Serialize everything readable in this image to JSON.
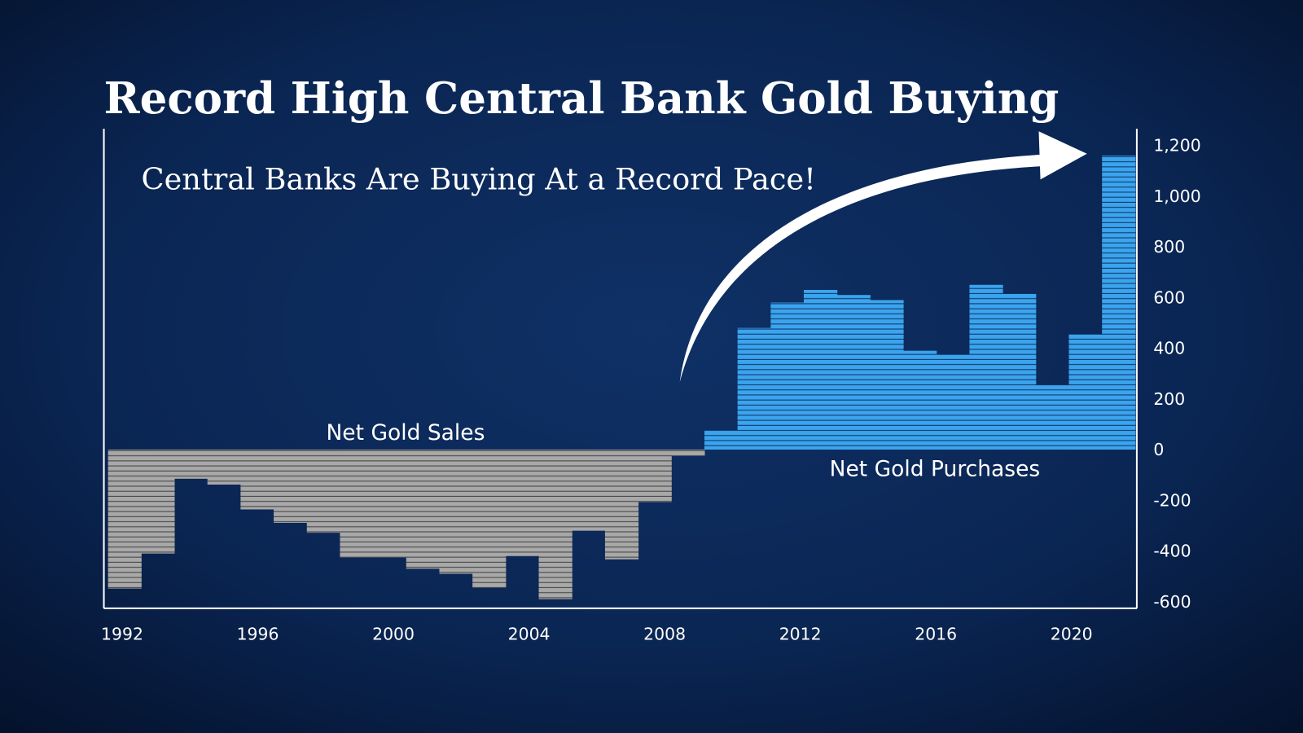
{
  "chart_data": {
    "type": "bar",
    "title": "Record High Central Bank Gold Buying",
    "subtitle": "Central Banks Are Buying At a Record Pace!",
    "annotations": {
      "sales": "Net Gold Sales",
      "purchases": "Net Gold Purchases"
    },
    "categories": [
      1992,
      1993,
      1994,
      1995,
      1996,
      1997,
      1998,
      1999,
      2000,
      2001,
      2002,
      2003,
      2004,
      2005,
      2006,
      2007,
      2008,
      2009,
      2010,
      2011,
      2012,
      2013,
      2014,
      2015,
      2016,
      2017,
      2018,
      2019,
      2020,
      2021,
      2022
    ],
    "values": [
      -548,
      -410,
      -115,
      -138,
      -236,
      -289,
      -328,
      -426,
      -426,
      -470,
      -490,
      -545,
      -420,
      -590,
      -320,
      -433,
      -207,
      -25,
      77,
      480,
      580,
      630,
      610,
      590,
      390,
      375,
      650,
      615,
      255,
      455,
      1160
    ],
    "x_tick_labels": [
      "1992",
      "1996",
      "2000",
      "2004",
      "2008",
      "2012",
      "2016",
      "2020"
    ],
    "y_tick_labels": [
      "1,200",
      "1,000",
      "800",
      "600",
      "400",
      "200",
      "0",
      "-200",
      "-400",
      "-600"
    ],
    "ylim": [
      -600,
      1200
    ],
    "y_axis_position": "right",
    "grid": false,
    "colors": {
      "negative": "#a8a8a8",
      "positive": "#3ba4ee",
      "background": "#0a2552"
    }
  }
}
